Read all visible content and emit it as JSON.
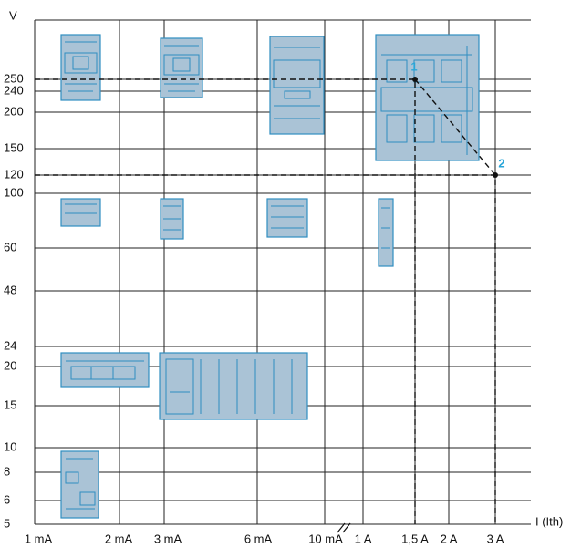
{
  "axes": {
    "y_title": "V",
    "x_title": "I (Ith)",
    "y_labels": [
      "250",
      "240",
      "200",
      "150",
      "120",
      "100",
      "60",
      "48",
      "24",
      "20",
      "15",
      "10",
      "8",
      "6",
      "5"
    ],
    "x_labels": [
      "1 mA",
      "2 mA",
      "3 mA",
      "6 mA",
      "10 mA",
      "1 A",
      "1,5 A",
      "2 A",
      "3 A"
    ]
  },
  "markers": [
    "1",
    "2"
  ]
}
